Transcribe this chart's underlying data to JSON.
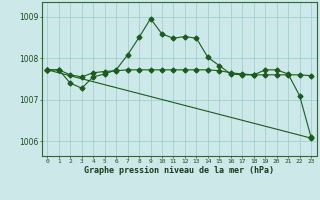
{
  "title": "Graphe pression niveau de la mer (hPa)",
  "background_color": "#cce8e8",
  "grid_color": "#99cccc",
  "line_color": "#1a5c1a",
  "xlim": [
    -0.5,
    23.5
  ],
  "ylim": [
    1005.65,
    1009.35
  ],
  "yticks": [
    1006,
    1007,
    1008,
    1009
  ],
  "xtick_labels": [
    "0",
    "1",
    "2",
    "3",
    "4",
    "5",
    "6",
    "7",
    "8",
    "9",
    "10",
    "11",
    "12",
    "13",
    "14",
    "15",
    "16",
    "17",
    "18",
    "19",
    "20",
    "21",
    "22",
    "23"
  ],
  "series_main": {
    "x": [
      0,
      1,
      2,
      3,
      4,
      5,
      6,
      7,
      8,
      9,
      10,
      11,
      12,
      13,
      14,
      15,
      16,
      17,
      18,
      19,
      20,
      21,
      22,
      23
    ],
    "y": [
      1007.72,
      1007.72,
      1007.4,
      1007.28,
      1007.55,
      1007.62,
      1007.72,
      1008.08,
      1008.5,
      1008.95,
      1008.58,
      1008.48,
      1008.52,
      1008.48,
      1008.02,
      1007.82,
      1007.62,
      1007.6,
      1007.6,
      1007.72,
      1007.72,
      1007.62,
      1007.1,
      1006.1
    ]
  },
  "series_smooth": {
    "x": [
      0,
      1,
      2,
      3,
      4,
      5,
      6,
      7,
      8,
      9,
      10,
      11,
      12,
      13,
      14,
      15,
      16,
      17,
      18,
      19,
      20,
      21,
      22,
      23
    ],
    "y": [
      1007.72,
      1007.72,
      1007.6,
      1007.55,
      1007.65,
      1007.68,
      1007.7,
      1007.72,
      1007.72,
      1007.72,
      1007.72,
      1007.72,
      1007.72,
      1007.72,
      1007.72,
      1007.7,
      1007.65,
      1007.62,
      1007.6,
      1007.6,
      1007.6,
      1007.6,
      1007.6,
      1007.58
    ]
  },
  "series_trend": {
    "x": [
      0,
      23
    ],
    "y": [
      1007.72,
      1006.08
    ]
  }
}
